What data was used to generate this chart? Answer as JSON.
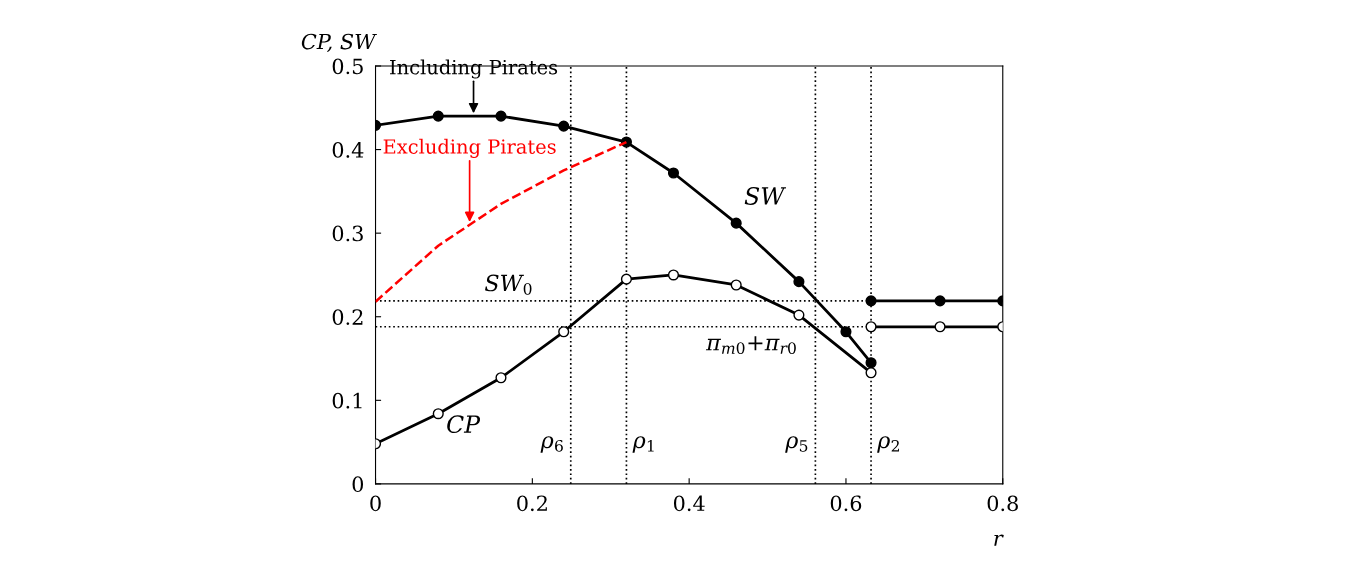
{
  "chart_data": {
    "type": "line",
    "xlabel": "r",
    "ylabel": "CP, SW",
    "xlim": [
      0,
      0.8
    ],
    "ylim": [
      0,
      0.5
    ],
    "xticks": [
      0,
      0.2,
      0.4,
      0.6,
      0.8
    ],
    "yticks": [
      0,
      0.1,
      0.2,
      0.3,
      0.4,
      0.5
    ],
    "grid": false,
    "legend": false,
    "series": [
      {
        "name": "SW",
        "color": "#000000",
        "marker": "circle",
        "x": [
          0,
          0.08,
          0.16,
          0.24,
          0.32,
          0.38,
          0.46,
          0.54,
          0.6,
          0.632
        ],
        "values": [
          0.429,
          0.44,
          0.44,
          0.428,
          0.409,
          0.372,
          0.312,
          0.242,
          0.182,
          0.145
        ]
      },
      {
        "color": "#000000",
        "marker": "circle",
        "x": [
          0.632,
          0.72,
          0.8
        ],
        "values": [
          0.219,
          0.219,
          0.219
        ]
      },
      {
        "name": "CP",
        "color": "#000000",
        "marker": "circle",
        "x": [
          0,
          0.08,
          0.16,
          0.24,
          0.32,
          0.38,
          0.46,
          0.54,
          0.632
        ],
        "values": [
          0.048,
          0.084,
          0.127,
          0.182,
          0.245,
          0.25,
          0.238,
          0.202,
          0.133
        ]
      },
      {
        "color": "#000000",
        "marker": "circle",
        "x": [
          0.632,
          0.72,
          0.8
        ],
        "values": [
          0.188,
          0.188,
          0.188
        ]
      },
      {
        "color": "#ff0000",
        "marker": "none",
        "line_style": "dashed",
        "x": [
          0,
          0.08,
          0.16,
          0.24,
          0.32
        ],
        "values": [
          0.218,
          0.285,
          0.335,
          0.375,
          0.409
        ]
      }
    ],
    "ref_lines": [
      {
        "axis": "x",
        "value": 0.249,
        "label": "ρ$_{6}$",
        "line_style": "dotted"
      },
      {
        "axis": "x",
        "value": 0.32,
        "label": "ρ$_{1}$",
        "line_style": "dotted"
      },
      {
        "axis": "x",
        "value": 0.561,
        "label": "ρ$_{5}$",
        "line_style": "dotted"
      },
      {
        "axis": "x",
        "value": 0.632,
        "label": "ρ$_{2}$",
        "line_style": "dotted"
      },
      {
        "axis": "y",
        "value": 0.219,
        "label": "SW$_{0}$",
        "line_style": "dotted"
      },
      {
        "axis": "y",
        "value": 0.188,
        "label": "π$_{m0}$+π$_{r0}$",
        "line_style": "dotted"
      }
    ],
    "annotations": [
      {
        "text": "Including Pirates",
        "x": 0.125,
        "y": 0.44
      },
      {
        "text": "Excluding Pirates",
        "x": 0.12,
        "y": 0.31
      }
    ]
  }
}
